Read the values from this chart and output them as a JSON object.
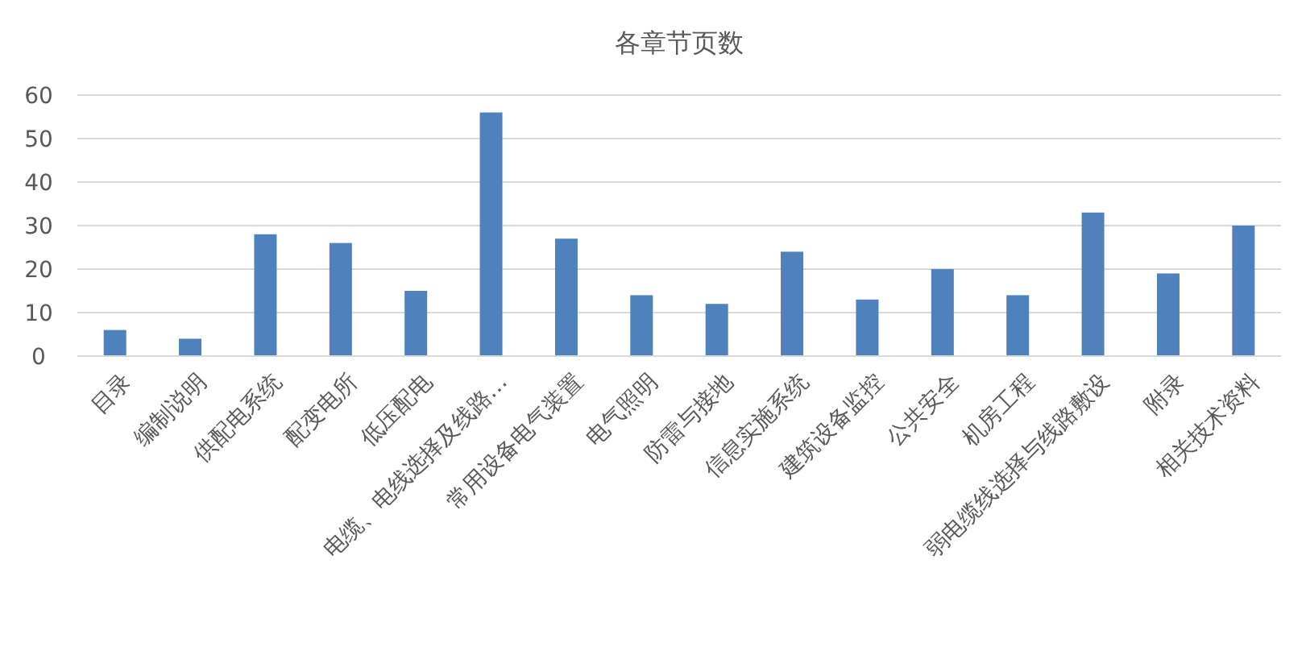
{
  "chart_data": {
    "type": "bar",
    "title": "各章节页数",
    "categories": [
      "目录",
      "编制说明",
      "供配电系统",
      "配变电所",
      "低压配电",
      "电缆、电线选择及线路…",
      "常用设备电气装置",
      "电气照明",
      "防雷与接地",
      "信息实施系统",
      "建筑设备监控",
      "公共安全",
      "机房工程",
      "弱电缆线选择与线路敷设",
      "附录",
      "相关技术资料"
    ],
    "values": [
      6,
      4,
      28,
      26,
      15,
      56,
      27,
      14,
      12,
      24,
      13,
      20,
      14,
      33,
      19,
      30
    ],
    "color": "#4f81bd",
    "ylim": [
      0,
      60
    ],
    "yticks": [
      0,
      10,
      20,
      30,
      40,
      50,
      60
    ],
    "grid": "y"
  }
}
